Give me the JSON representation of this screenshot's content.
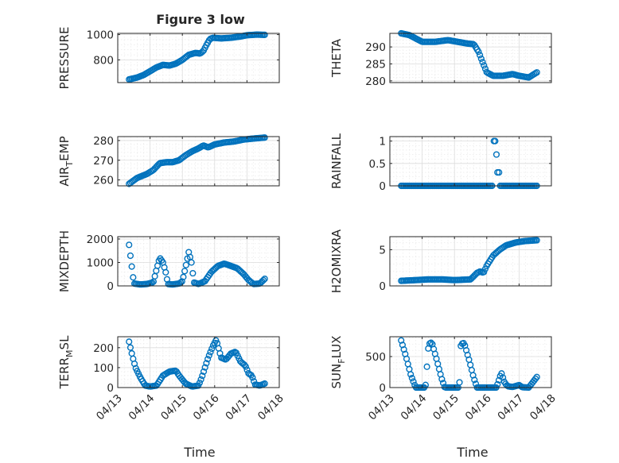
{
  "figure": {
    "title": "Figure 3 low",
    "xlabel": "Time"
  },
  "colors": {
    "marker": "#0072bd",
    "axis": "#262626",
    "grid": "#dcdcdc"
  },
  "x_ticks": [
    "04/13",
    "04/14",
    "04/15",
    "04/16",
    "04/17",
    "04/18"
  ],
  "chart_data": [
    {
      "type": "scatter",
      "id": "pressure",
      "marker": "circle",
      "grid": true,
      "minor_grid": true,
      "xlim": [
        0,
        5
      ],
      "ylim": [
        620,
        1010
      ],
      "yticks": [
        800,
        1000
      ],
      "title": "Figure 3 low",
      "ylabel": "PRESSURE",
      "knots": [
        [
          0.35,
          645
        ],
        [
          0.6,
          660
        ],
        [
          0.8,
          680
        ],
        [
          1.0,
          710
        ],
        [
          1.2,
          740
        ],
        [
          1.4,
          760
        ],
        [
          1.6,
          755
        ],
        [
          1.8,
          770
        ],
        [
          2.0,
          800
        ],
        [
          2.2,
          840
        ],
        [
          2.4,
          855
        ],
        [
          2.55,
          850
        ],
        [
          2.65,
          870
        ],
        [
          2.75,
          920
        ],
        [
          2.85,
          965
        ],
        [
          2.95,
          975
        ],
        [
          3.2,
          970
        ],
        [
          3.5,
          975
        ],
        [
          3.8,
          985
        ],
        [
          4.0,
          995
        ],
        [
          4.3,
          1000
        ],
        [
          4.55,
          998
        ]
      ]
    },
    {
      "type": "scatter",
      "id": "theta",
      "marker": "circle",
      "grid": true,
      "minor_grid": true,
      "xlim": [
        0,
        5
      ],
      "ylim": [
        279.5,
        294
      ],
      "yticks": [
        280,
        285,
        290
      ],
      "ylabel": "THETA",
      "knots": [
        [
          0.35,
          294
        ],
        [
          0.6,
          293.5
        ],
        [
          0.8,
          292.5
        ],
        [
          1.0,
          291.5
        ],
        [
          1.4,
          291.5
        ],
        [
          1.8,
          292
        ],
        [
          2.1,
          291.5
        ],
        [
          2.4,
          291
        ],
        [
          2.6,
          290.8
        ],
        [
          2.75,
          288.5
        ],
        [
          2.85,
          286
        ],
        [
          3.0,
          282.5
        ],
        [
          3.2,
          281.5
        ],
        [
          3.5,
          281.5
        ],
        [
          3.8,
          282
        ],
        [
          4.0,
          281.5
        ],
        [
          4.3,
          281
        ],
        [
          4.55,
          282.5
        ]
      ]
    },
    {
      "type": "scatter",
      "id": "air_temp",
      "marker": "circle",
      "grid": true,
      "minor_grid": true,
      "xlim": [
        0,
        5
      ],
      "ylim": [
        257,
        282
      ],
      "yticks": [
        260,
        270,
        280
      ],
      "ylabel_main": "AIR",
      "ylabel_sub": "T",
      "ylabel_rest": "EMP",
      "knots": [
        [
          0.35,
          258
        ],
        [
          0.6,
          261
        ],
        [
          0.9,
          263
        ],
        [
          1.1,
          265
        ],
        [
          1.3,
          268.5
        ],
        [
          1.5,
          269
        ],
        [
          1.7,
          269
        ],
        [
          1.9,
          270
        ],
        [
          2.1,
          272.5
        ],
        [
          2.3,
          274.5
        ],
        [
          2.5,
          276
        ],
        [
          2.65,
          277.5
        ],
        [
          2.8,
          276.5
        ],
        [
          3.0,
          278
        ],
        [
          3.3,
          279
        ],
        [
          3.6,
          279.5
        ],
        [
          3.9,
          280.5
        ],
        [
          4.2,
          281
        ],
        [
          4.55,
          281.5
        ]
      ]
    },
    {
      "type": "scatter",
      "id": "rainfall",
      "marker": "circle",
      "grid": true,
      "minor_grid": true,
      "xlim": [
        0,
        5
      ],
      "ylim": [
        0,
        1.1
      ],
      "yticks": [
        0,
        0.5,
        1
      ],
      "ylabel": "RAINFALL",
      "knots": [
        [
          0.35,
          0
        ],
        [
          3.15,
          0
        ],
        [
          3.25,
          0
        ],
        [
          4.55,
          0
        ]
      ],
      "gap": [
        3.17,
        3.38
      ],
      "extra_points": [
        [
          3.22,
          1.0
        ],
        [
          3.26,
          1.0
        ],
        [
          3.3,
          0.7
        ],
        [
          3.33,
          0.3
        ],
        [
          3.38,
          0.3
        ]
      ]
    },
    {
      "type": "scatter",
      "id": "mixdepth",
      "marker": "circle",
      "grid": true,
      "minor_grid": true,
      "xlim": [
        0,
        5
      ],
      "ylim": [
        0,
        2100
      ],
      "yticks": [
        0,
        1000,
        2000
      ],
      "ylabel": "MIXDEPTH",
      "knots": [
        [
          0.35,
          1750
        ],
        [
          0.4,
          1200
        ],
        [
          0.45,
          650
        ],
        [
          0.5,
          100
        ],
        [
          0.7,
          60
        ],
        [
          0.9,
          80
        ],
        [
          1.1,
          150
        ],
        [
          1.2,
          700
        ],
        [
          1.3,
          1200
        ],
        [
          1.4,
          1000
        ],
        [
          1.5,
          500
        ],
        [
          1.55,
          80
        ],
        [
          1.7,
          60
        ],
        [
          1.9,
          100
        ],
        [
          2.0,
          200
        ],
        [
          2.1,
          800
        ],
        [
          2.2,
          1450
        ],
        [
          2.3,
          900
        ],
        [
          2.35,
          150
        ],
        [
          2.5,
          80
        ],
        [
          2.7,
          200
        ],
        [
          2.9,
          600
        ],
        [
          3.1,
          850
        ],
        [
          3.3,
          950
        ],
        [
          3.5,
          850
        ],
        [
          3.7,
          750
        ],
        [
          3.9,
          500
        ],
        [
          4.05,
          250
        ],
        [
          4.2,
          80
        ],
        [
          4.4,
          100
        ],
        [
          4.55,
          300
        ]
      ]
    },
    {
      "type": "scatter",
      "id": "h2omixra",
      "marker": "circle",
      "grid": true,
      "minor_grid": true,
      "xlim": [
        0,
        5
      ],
      "ylim": [
        0,
        6.8
      ],
      "yticks": [
        0,
        5
      ],
      "ylabel": "H2OMIXRA",
      "knots": [
        [
          0.35,
          0.7
        ],
        [
          0.8,
          0.8
        ],
        [
          1.2,
          0.9
        ],
        [
          1.6,
          0.9
        ],
        [
          2.0,
          0.8
        ],
        [
          2.5,
          0.9
        ],
        [
          2.7,
          1.8
        ],
        [
          2.8,
          2.0
        ],
        [
          2.9,
          1.8
        ],
        [
          3.0,
          2.8
        ],
        [
          3.2,
          4.2
        ],
        [
          3.4,
          5.0
        ],
        [
          3.6,
          5.6
        ],
        [
          3.9,
          6.0
        ],
        [
          4.2,
          6.2
        ],
        [
          4.55,
          6.3
        ]
      ]
    },
    {
      "type": "scatter",
      "id": "terr_msl",
      "marker": "circle",
      "grid": true,
      "minor_grid": true,
      "xlim": [
        0,
        5
      ],
      "ylim": [
        0,
        255
      ],
      "yticks": [
        0,
        100,
        200
      ],
      "ylabel_main": "TERR",
      "ylabel_sub": "M",
      "ylabel_rest": "SL",
      "knots": [
        [
          0.35,
          230
        ],
        [
          0.45,
          160
        ],
        [
          0.55,
          100
        ],
        [
          0.7,
          50
        ],
        [
          0.85,
          10
        ],
        [
          1.0,
          5
        ],
        [
          1.2,
          10
        ],
        [
          1.4,
          60
        ],
        [
          1.6,
          80
        ],
        [
          1.8,
          85
        ],
        [
          1.9,
          60
        ],
        [
          2.1,
          20
        ],
        [
          2.3,
          5
        ],
        [
          2.5,
          10
        ],
        [
          2.6,
          50
        ],
        [
          2.7,
          100
        ],
        [
          2.8,
          150
        ],
        [
          2.95,
          210
        ],
        [
          3.05,
          240
        ],
        [
          3.2,
          150
        ],
        [
          3.35,
          140
        ],
        [
          3.5,
          170
        ],
        [
          3.65,
          180
        ],
        [
          3.8,
          130
        ],
        [
          3.95,
          110
        ],
        [
          4.05,
          70
        ],
        [
          4.15,
          60
        ],
        [
          4.25,
          15
        ],
        [
          4.4,
          10
        ],
        [
          4.55,
          20
        ]
      ]
    },
    {
      "type": "scatter",
      "id": "sun_flux",
      "marker": "circle",
      "grid": true,
      "minor_grid": true,
      "xlim": [
        0,
        5
      ],
      "ylim": [
        0,
        820
      ],
      "yticks": [
        0,
        500
      ],
      "ylabel_main": "SUN",
      "ylabel_sub": "F",
      "ylabel_rest": "LUX",
      "knots": [
        [
          0.35,
          760
        ],
        [
          0.5,
          500
        ],
        [
          0.65,
          200
        ],
        [
          0.8,
          0
        ],
        [
          1.1,
          0
        ],
        [
          1.2,
          700
        ],
        [
          1.3,
          730
        ],
        [
          1.45,
          450
        ],
        [
          1.6,
          150
        ],
        [
          1.7,
          0
        ],
        [
          2.15,
          0
        ],
        [
          2.2,
          700
        ],
        [
          2.3,
          720
        ],
        [
          2.45,
          450
        ],
        [
          2.6,
          150
        ],
        [
          2.7,
          0
        ],
        [
          3.3,
          0
        ],
        [
          3.45,
          240
        ],
        [
          3.55,
          80
        ],
        [
          3.65,
          20
        ],
        [
          3.8,
          10
        ],
        [
          4.0,
          40
        ],
        [
          4.1,
          5
        ],
        [
          4.3,
          0
        ],
        [
          4.55,
          170
        ]
      ]
    }
  ]
}
